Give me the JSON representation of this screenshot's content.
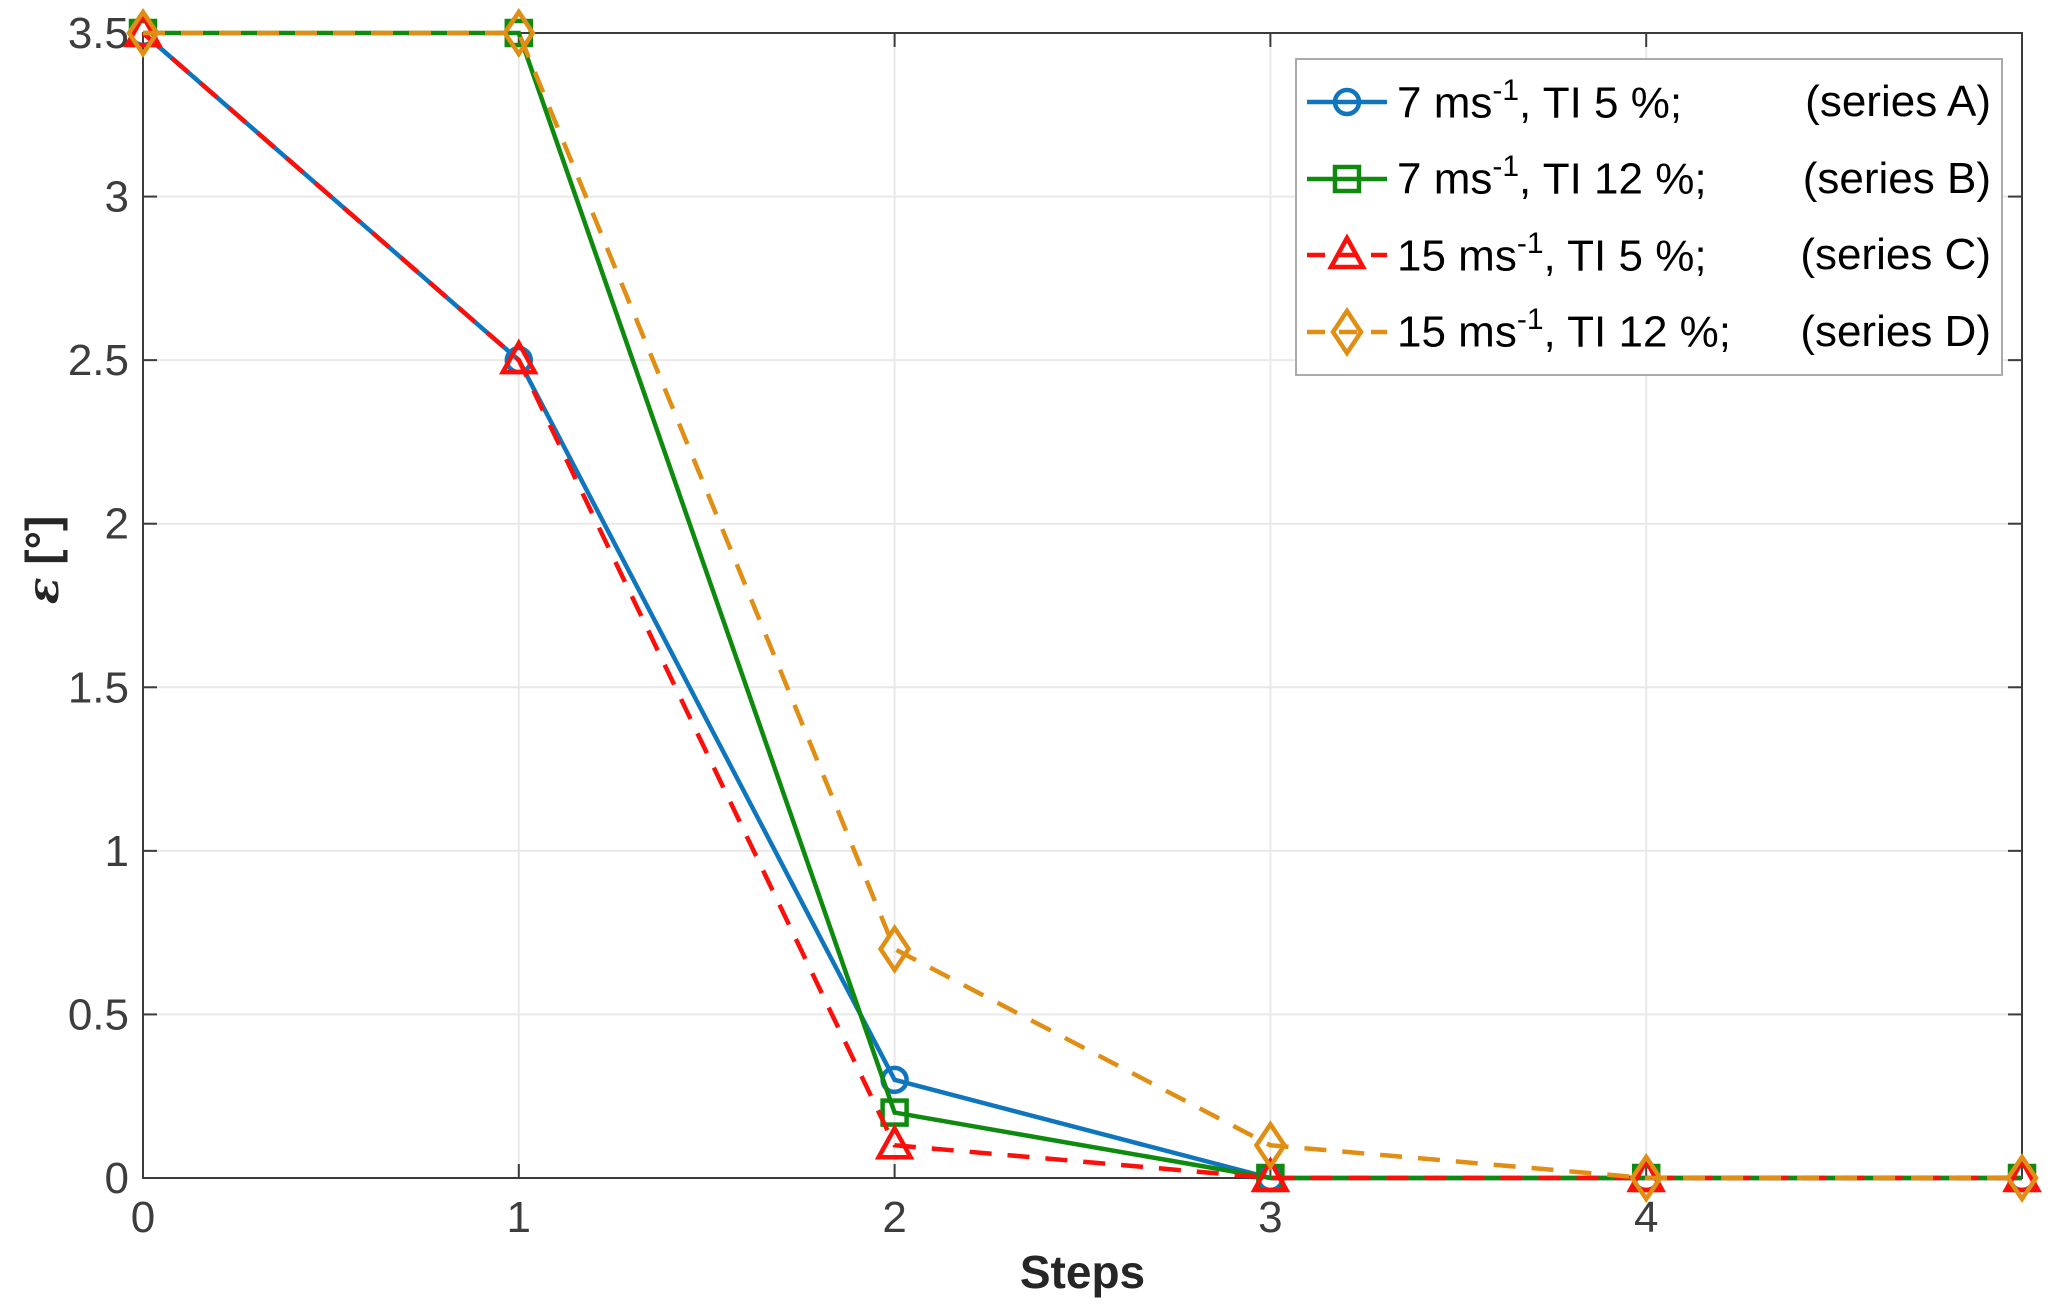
{
  "chart_data": {
    "type": "line",
    "title": "",
    "xlabel": "Steps",
    "ylabel": "ε [°]",
    "ylabel_symbol": "ε",
    "ylabel_unit": " [°]",
    "xlim": [
      0,
      5
    ],
    "ylim": [
      0,
      3.5
    ],
    "xticks": [
      0,
      1,
      2,
      3,
      4
    ],
    "yticks": [
      0,
      0.5,
      1,
      1.5,
      2,
      2.5,
      3,
      3.5
    ],
    "grid": true,
    "legend_position": "top-right",
    "x": [
      0,
      1,
      2,
      3,
      4,
      5
    ],
    "series": [
      {
        "name": "7 ms-1, TI 5 %; (series A)",
        "color": "#0F76BD",
        "line": "solid",
        "marker": "circle",
        "values": [
          3.5,
          2.5,
          0.3,
          0,
          0,
          0
        ]
      },
      {
        "name": "7 ms-1, TI 12 %; (series B)",
        "color": "#0E8A0E",
        "line": "solid",
        "marker": "square",
        "values": [
          3.5,
          3.5,
          0.2,
          0,
          0,
          0
        ]
      },
      {
        "name": "15 ms-1, TI 5 %; (series C)",
        "color": "#FA0F0A",
        "line": "dashed",
        "marker": "triangle",
        "values": [
          3.5,
          2.5,
          0.1,
          0,
          0,
          0
        ]
      },
      {
        "name": "15 ms-1, TI 12 %; (series D)",
        "color": "#E08E14",
        "line": "dashed",
        "marker": "diamond",
        "values": [
          3.5,
          3.5,
          0.7,
          0.1,
          0,
          0
        ]
      }
    ],
    "axis_color": "#3c3c3c",
    "grid_color": "#e9e9e9",
    "tick_label_color": "#3d3d3d"
  },
  "legend": {
    "entries": [
      {
        "speed": "7 ms",
        "sup": "-1",
        "rest": ", TI 5 %;",
        "tag": "(series A)"
      },
      {
        "speed": "7 ms",
        "sup": "-1",
        "rest": ", TI 12 %;",
        "tag": "(series B)"
      },
      {
        "speed": "15 ms",
        "sup": "-1",
        "rest": ", TI 5 %;",
        "tag": "(series C)"
      },
      {
        "speed": "15 ms",
        "sup": "-1",
        "rest": ", TI 12 %;",
        "tag": "(series D)"
      }
    ]
  }
}
